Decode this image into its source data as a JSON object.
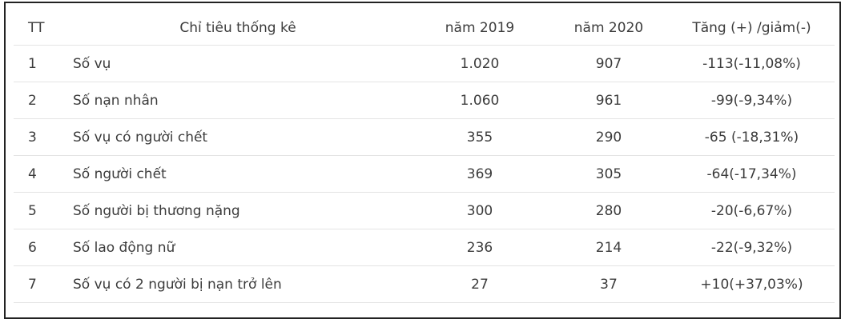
{
  "table": {
    "headers": [
      "TT",
      "Chỉ tiêu thống kê",
      "năm 2019",
      "năm 2020",
      "Tăng (+) /giảm(-)"
    ],
    "rows": [
      {
        "tt": "1",
        "label": "Số vụ",
        "y2019": "1.020",
        "y2020": "907",
        "change": "-113(-11,08%)"
      },
      {
        "tt": "2",
        "label": "Số nạn nhân",
        "y2019": "1.060",
        "y2020": "961",
        "change": "-99(-9,34%)"
      },
      {
        "tt": "3",
        "label": "Số vụ có người chết",
        "y2019": "355",
        "y2020": "290",
        "change": "-65 (-18,31%)"
      },
      {
        "tt": "4",
        "label": "Số người chết",
        "y2019": "369",
        "y2020": "305",
        "change": "-64(-17,34%)"
      },
      {
        "tt": "5",
        "label": "Số người bị thương nặng",
        "y2019": "300",
        "y2020": "280",
        "change": "-20(-6,67%)"
      },
      {
        "tt": "6",
        "label": "Số lao động nữ",
        "y2019": "236",
        "y2020": "214",
        "change": "-22(-9,32%)"
      },
      {
        "tt": "7",
        "label": "Số vụ có 2 người bị nạn trở lên",
        "y2019": "27",
        "y2020": "37",
        "change": "+10(+37,03%)"
      }
    ]
  }
}
